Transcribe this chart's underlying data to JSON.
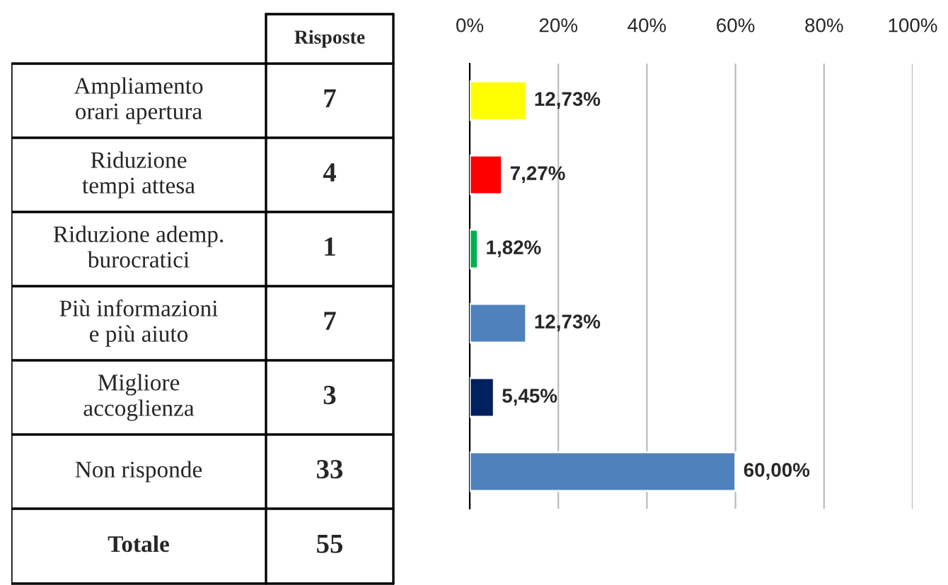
{
  "chart_data": [
    {
      "type": "other",
      "title": "Risposte",
      "categories": [
        "Ampliamento\norari apertura",
        "Riduzione\ntempi attesa",
        "Riduzione ademp.\nburocratici",
        "Più informazioni\ne più aiuto",
        "Migliore\naccoglienza",
        "Non risponde",
        "Totale"
      ],
      "values": [
        7,
        4,
        1,
        7,
        3,
        33,
        55
      ],
      "data_labels": true
    },
    {
      "type": "bar",
      "orientation": "horizontal",
      "categories": [
        null,
        null,
        null,
        null,
        null,
        null
      ],
      "values": [
        12.73,
        7.27,
        1.82,
        12.73,
        5.45,
        60.0
      ],
      "colors": [
        "#ffff00",
        "#ff0000",
        "#00b050",
        "#4f81bd",
        "#002060",
        "#4f81bd"
      ],
      "value_labels": [
        "12,73%",
        "7,27%",
        "1,82%",
        "12,73%",
        "5,45%",
        "60,00%"
      ],
      "xlim": [
        0,
        100
      ],
      "xticks": [
        {
          "value": 0,
          "label": "0%"
        },
        {
          "value": 20,
          "label": "20%"
        },
        {
          "value": 40,
          "label": "40%"
        },
        {
          "value": 60,
          "label": "60%"
        },
        {
          "value": 80,
          "label": "80%"
        },
        {
          "value": 100,
          "label": "100%"
        }
      ],
      "grid": "x",
      "legend": false
    }
  ]
}
